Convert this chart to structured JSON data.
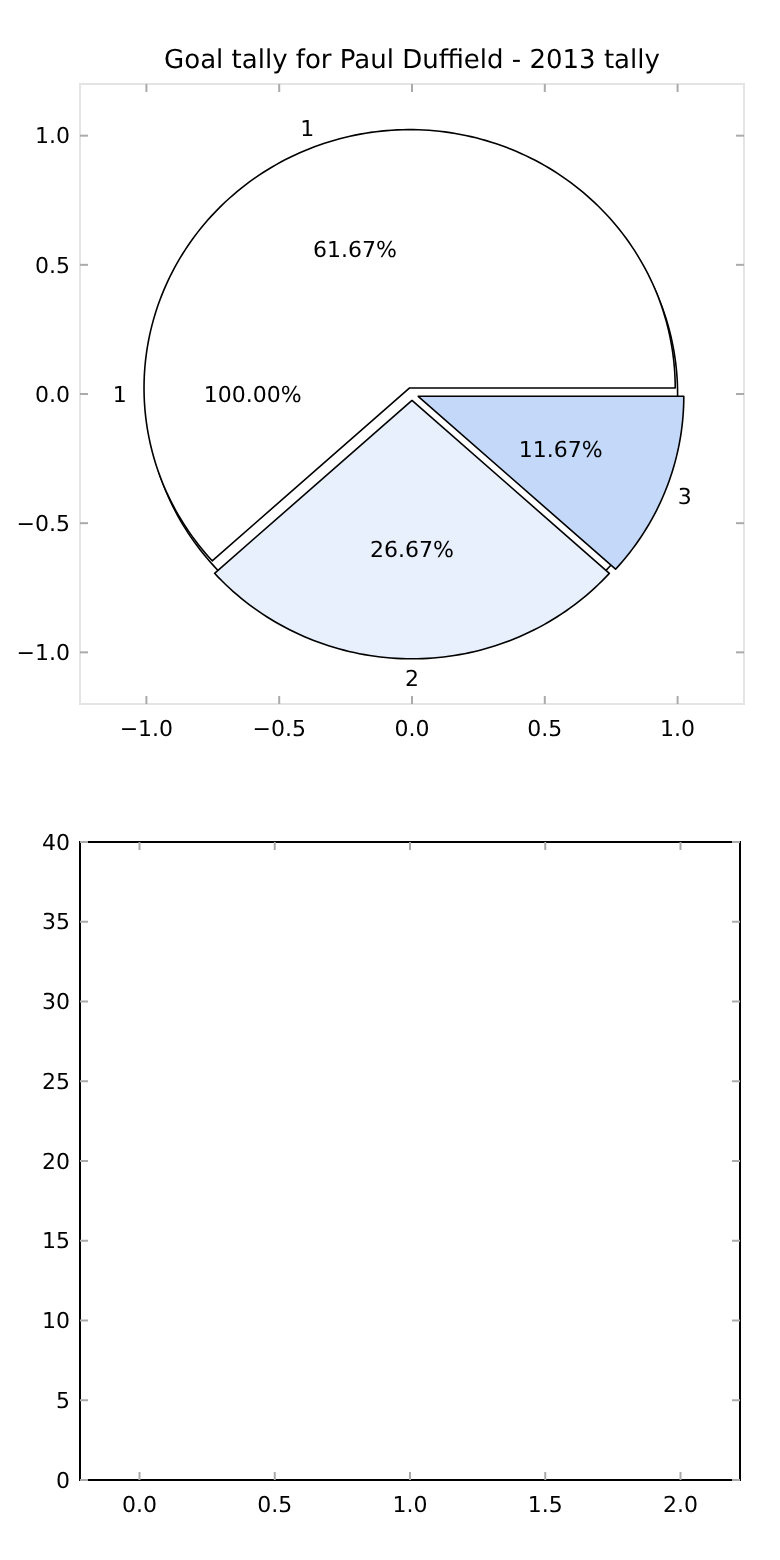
{
  "chart_data": [
    {
      "type": "scatter",
      "title": "Goal tally for Paul Duffield - 2013 tally",
      "xlim": [
        -1.25,
        1.25
      ],
      "ylim": [
        -1.2,
        1.2
      ],
      "xticks": [
        {
          "value": -1,
          "label": "−1.0"
        },
        {
          "value": -0.5,
          "label": "−0.5"
        },
        {
          "value": 0,
          "label": "0.0"
        },
        {
          "value": 0.5,
          "label": "0.5"
        },
        {
          "value": 1,
          "label": "1.0"
        }
      ],
      "yticks": [
        {
          "value": 1,
          "label": "1.0"
        },
        {
          "value": 0.5,
          "label": "0.5"
        },
        {
          "value": 0,
          "label": "0.0"
        },
        {
          "value": -0.5,
          "label": "−0.5"
        },
        {
          "value": -1,
          "label": "−1.0"
        }
      ]
    },
    {
      "type": "pie",
      "categories": [
        "1"
      ],
      "values": [
        100
      ],
      "value_labels": [
        "100.00%"
      ],
      "colors": [
        "#ffffff"
      ]
    },
    {
      "type": "pie",
      "categories": [
        "1",
        "2",
        "3"
      ],
      "values": [
        61.67,
        26.67,
        11.67
      ],
      "value_labels": [
        "61.67%",
        "26.67%",
        "11.67%"
      ],
      "colors": [
        "#ffffff",
        "#e8f0fd",
        "#c4d9f9"
      ]
    },
    {
      "type": "bar",
      "xlim": [
        -0.22,
        2.22
      ],
      "ylim": [
        0,
        40
      ],
      "xticks": [
        {
          "value": 0,
          "label": "0.0"
        },
        {
          "value": 0.5,
          "label": "0.5"
        },
        {
          "value": 1,
          "label": "1.0"
        },
        {
          "value": 1.5,
          "label": "1.5"
        },
        {
          "value": 2,
          "label": "2.0"
        }
      ],
      "yticks": [
        0,
        5,
        10,
        15,
        20,
        25,
        30,
        35,
        40
      ]
    }
  ]
}
